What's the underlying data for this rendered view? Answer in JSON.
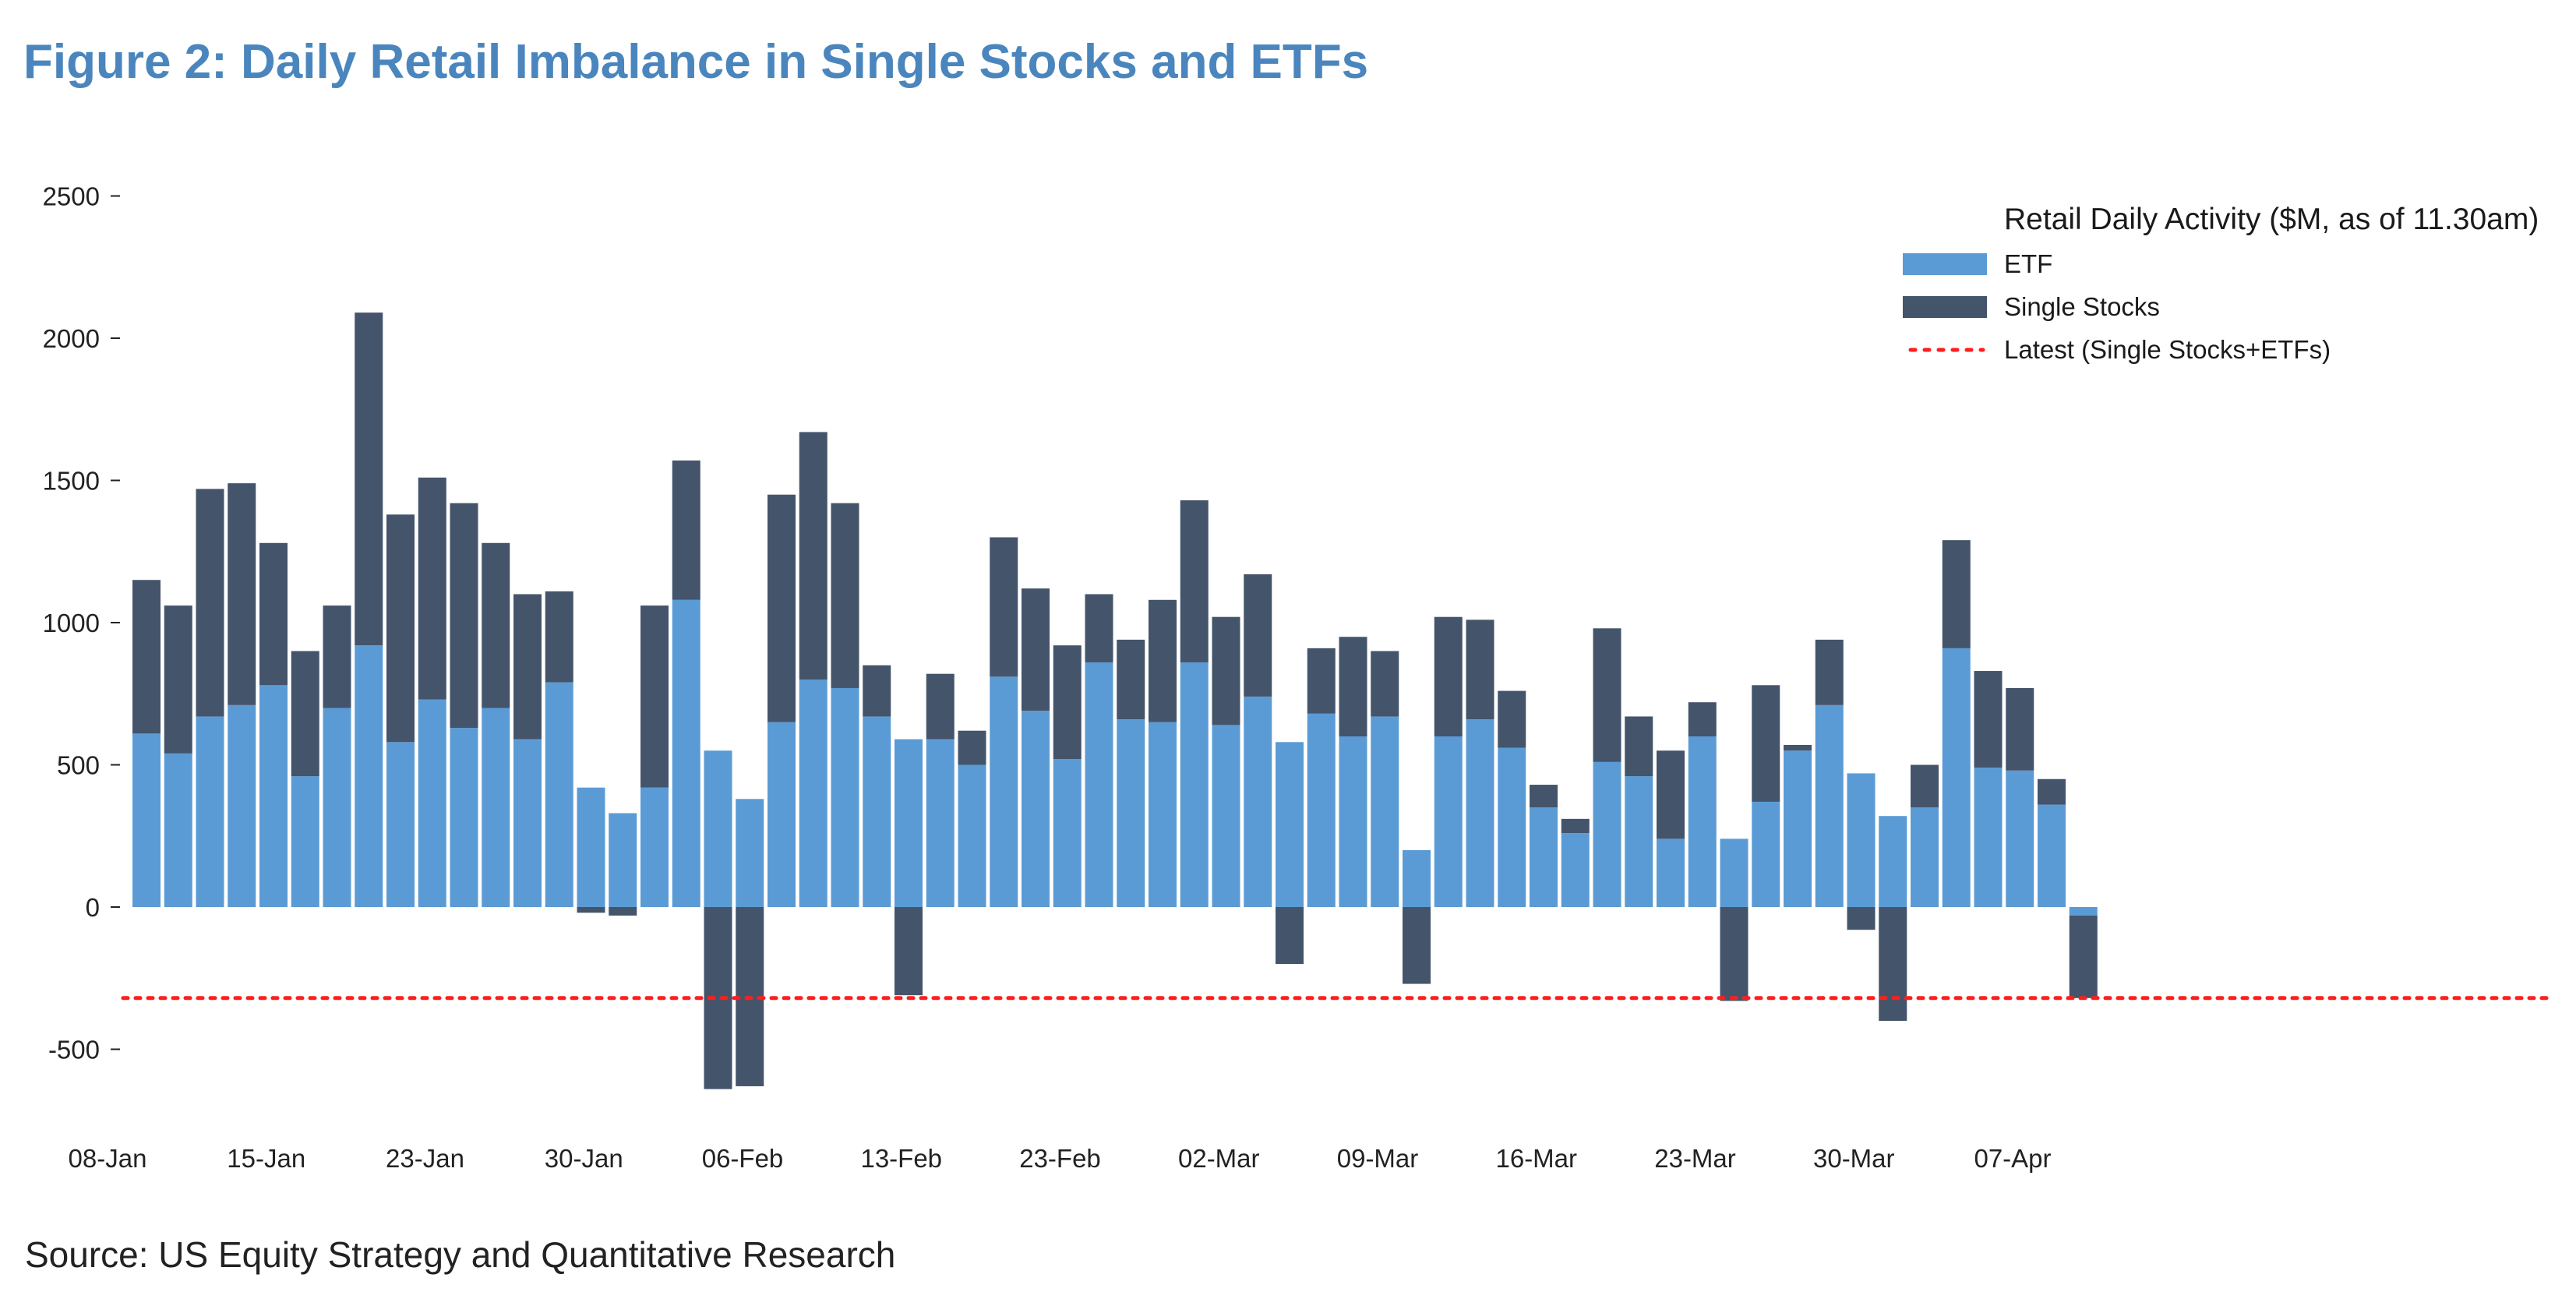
{
  "figure_title": "Figure 2: Daily Retail Imbalance in Single Stocks and ETFs",
  "source": "Source: US Equity Strategy and Quantitative Research",
  "colors": {
    "etf": "#5b9bd5",
    "single_stocks": "#44546a",
    "latest": "#ff1e1e",
    "text": "#222222",
    "title": "#4a86bd"
  },
  "chart_data": {
    "type": "bar",
    "stacked": true,
    "title": "Figure 2: Daily Retail Imbalance in Single Stocks and ETFs",
    "xlabel": "",
    "ylabel": "",
    "ylim": [
      -750,
      2600
    ],
    "yticks": [
      -500,
      0,
      500,
      1000,
      1500,
      2000,
      2500
    ],
    "ytick_labels": [
      "-500",
      "0",
      "500",
      "1000",
      "1500",
      "2000",
      "2500"
    ],
    "xtick_labels": [
      "08-Jan",
      "15-Jan",
      "23-Jan",
      "30-Jan",
      "06-Feb",
      "13-Feb",
      "23-Feb",
      "02-Mar",
      "09-Mar",
      "16-Mar",
      "23-Mar",
      "30-Mar",
      "07-Apr"
    ],
    "xtick_index": [
      0,
      5,
      10,
      15,
      20,
      25,
      30,
      35,
      40,
      45,
      50,
      55,
      60
    ],
    "legend_title": "Retail Daily Activity ($M, as of 11.30am)",
    "legend_position": "top-right",
    "series": [
      {
        "name": "ETF",
        "values": [
          610,
          540,
          670,
          710,
          780,
          460,
          700,
          920,
          580,
          730,
          630,
          700,
          590,
          790,
          420,
          330,
          420,
          1080,
          550,
          380,
          650,
          800,
          770,
          670,
          590,
          590,
          500,
          810,
          690,
          520,
          860,
          660,
          650,
          860,
          640,
          740,
          580,
          680,
          600,
          670,
          200,
          600,
          660,
          560,
          350,
          260,
          510,
          460,
          240,
          600,
          240,
          370,
          550,
          710,
          470,
          320,
          350,
          910,
          490,
          480,
          360,
          -30
        ]
      },
      {
        "name": "Single Stocks",
        "values": [
          540,
          520,
          800,
          780,
          500,
          440,
          360,
          1170,
          800,
          780,
          790,
          580,
          510,
          320,
          -20,
          -30,
          640,
          490,
          -640,
          -630,
          800,
          870,
          650,
          180,
          -310,
          230,
          120,
          490,
          430,
          400,
          240,
          280,
          430,
          570,
          380,
          430,
          -200,
          230,
          350,
          230,
          -270,
          420,
          350,
          200,
          80,
          50,
          470,
          210,
          310,
          120,
          -330,
          410,
          20,
          230,
          -80,
          -400,
          150,
          380,
          340,
          290,
          90,
          -290
        ]
      },
      {
        "name": "Latest (Single Stocks+ETFs)",
        "value": -320
      }
    ]
  }
}
